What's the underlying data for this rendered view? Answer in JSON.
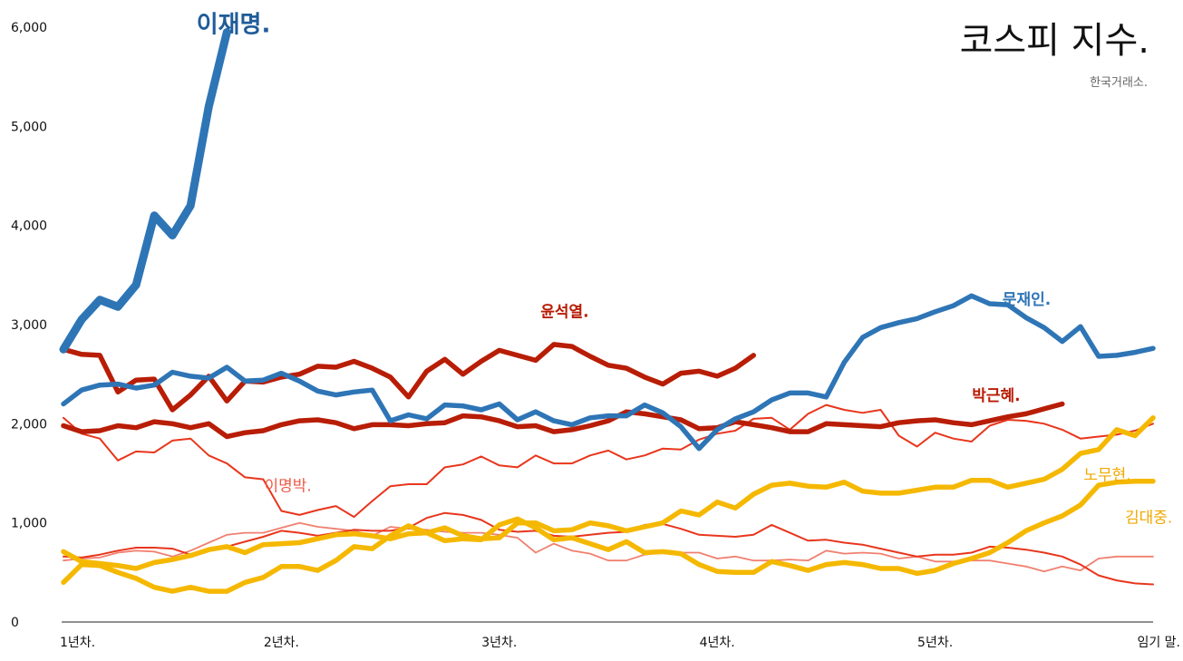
{
  "chart_data": {
    "type": "line",
    "title": "코스피 지수.",
    "subtitle": "한국거래소.",
    "xlabel": "",
    "ylabel": "",
    "x_ticks": [
      {
        "label": "1년차.",
        "value": 0
      },
      {
        "label": "2년차.",
        "value": 1
      },
      {
        "label": "3년차.",
        "value": 2
      },
      {
        "label": "4년차.",
        "value": 3
      },
      {
        "label": "5년차.",
        "value": 4
      },
      {
        "label": "임기 말.",
        "value": 5
      }
    ],
    "y_ticks": [
      0,
      1000,
      2000,
      3000,
      4000,
      5000,
      6000
    ],
    "y_tick_labels": [
      "0",
      "1,000",
      "2,000",
      "3,000",
      "4,000",
      "5,000",
      "6,000"
    ],
    "xlim": [
      0,
      5
    ],
    "ylim": [
      0,
      6000
    ],
    "grid": false,
    "series": [
      {
        "name": "이재명.",
        "color": "#2e75b6",
        "label_color": "#1f5c99",
        "stroke": 9,
        "label_size": 26,
        "label_weight": "bold",
        "label_at": [
          0.78,
          5950
        ],
        "x": [
          0,
          0.083,
          0.167,
          0.25,
          0.333,
          0.417,
          0.5,
          0.583,
          0.667,
          0.75
        ],
        "y": [
          2750,
          3050,
          3250,
          3180,
          3400,
          4100,
          3900,
          4200,
          5200,
          5950
        ]
      },
      {
        "name": "문재인.",
        "color": "#2e75b6",
        "label_color": "#2e75b6",
        "stroke": 5.5,
        "label_size": 17,
        "label_weight": "bold",
        "label_at": [
          4.42,
          3200
        ],
        "x": [
          0,
          0.083,
          0.167,
          0.25,
          0.333,
          0.417,
          0.5,
          0.583,
          0.667,
          0.75,
          0.833,
          0.917,
          1.0,
          1.083,
          1.167,
          1.25,
          1.333,
          1.417,
          1.5,
          1.583,
          1.667,
          1.75,
          1.833,
          1.917,
          2.0,
          2.083,
          2.167,
          2.25,
          2.333,
          2.417,
          2.5,
          2.583,
          2.667,
          2.75,
          2.833,
          2.917,
          3.0,
          3.083,
          3.167,
          3.25,
          3.333,
          3.417,
          3.5,
          3.583,
          3.667,
          3.75,
          3.833,
          3.917,
          4.0,
          4.083,
          4.167,
          4.25,
          4.333,
          4.417,
          4.5,
          4.583,
          4.667,
          4.75,
          4.833,
          4.917,
          5.0
        ],
        "y": [
          2200,
          2340,
          2390,
          2400,
          2360,
          2390,
          2520,
          2480,
          2460,
          2570,
          2430,
          2440,
          2510,
          2430,
          2330,
          2290,
          2320,
          2340,
          2030,
          2090,
          2050,
          2190,
          2180,
          2140,
          2200,
          2040,
          2120,
          2030,
          1990,
          2060,
          2080,
          2080,
          2190,
          2110,
          1970,
          1750,
          1940,
          2050,
          2120,
          2240,
          2310,
          2310,
          2270,
          2620,
          2870,
          2970,
          3020,
          3060,
          3130,
          3190,
          3290,
          3210,
          3200,
          3070,
          2970,
          2830,
          2980,
          2680,
          2690,
          2720,
          2760
        ]
      },
      {
        "name": "윤석열.",
        "color": "#b81d06",
        "label_color": "#b81d06",
        "stroke": 5.5,
        "label_size": 17,
        "label_weight": "bold",
        "label_at": [
          2.3,
          3080
        ],
        "x": [
          0,
          0.083,
          0.167,
          0.25,
          0.333,
          0.417,
          0.5,
          0.583,
          0.667,
          0.75,
          0.833,
          0.917,
          1.0,
          1.083,
          1.167,
          1.25,
          1.333,
          1.417,
          1.5,
          1.583,
          1.667,
          1.75,
          1.833,
          1.917,
          2.0,
          2.083,
          2.167,
          2.25,
          2.333,
          2.417,
          2.5,
          2.583,
          2.667,
          2.75,
          2.833,
          2.917,
          3.0,
          3.083,
          3.167
        ],
        "y": [
          2750,
          2700,
          2690,
          2320,
          2440,
          2450,
          2140,
          2290,
          2480,
          2230,
          2430,
          2420,
          2470,
          2500,
          2580,
          2570,
          2630,
          2560,
          2470,
          2270,
          2530,
          2650,
          2500,
          2630,
          2740,
          2690,
          2640,
          2800,
          2780,
          2680,
          2590,
          2560,
          2470,
          2400,
          2510,
          2530,
          2480,
          2560,
          2690
        ]
      },
      {
        "name": "박근혜.",
        "color": "#b81d06",
        "label_color": "#b81d06",
        "stroke": 5.5,
        "label_size": 17,
        "label_weight": "bold",
        "label_at": [
          4.28,
          2230
        ],
        "x": [
          0,
          0.083,
          0.167,
          0.25,
          0.333,
          0.417,
          0.5,
          0.583,
          0.667,
          0.75,
          0.833,
          0.917,
          1.0,
          1.083,
          1.167,
          1.25,
          1.333,
          1.417,
          1.5,
          1.583,
          1.667,
          1.75,
          1.833,
          1.917,
          2.0,
          2.083,
          2.167,
          2.25,
          2.333,
          2.417,
          2.5,
          2.583,
          2.667,
          2.75,
          2.833,
          2.917,
          3.0,
          3.083,
          3.167,
          3.25,
          3.333,
          3.417,
          3.5,
          3.583,
          3.667,
          3.75,
          3.833,
          3.917,
          4.0,
          4.083,
          4.167,
          4.25,
          4.333,
          4.417,
          4.5,
          4.583
        ],
        "y": [
          1980,
          1920,
          1930,
          1980,
          1960,
          2020,
          2000,
          1960,
          2000,
          1870,
          1910,
          1930,
          1990,
          2030,
          2040,
          2010,
          1950,
          1990,
          1990,
          1980,
          2000,
          2010,
          2080,
          2070,
          2030,
          1970,
          1980,
          1920,
          1940,
          1980,
          2030,
          2120,
          2100,
          2070,
          2040,
          1950,
          1960,
          2020,
          1990,
          1960,
          1920,
          1920,
          2000,
          1990,
          1980,
          1970,
          2010,
          2030,
          2040,
          2010,
          1990,
          2030,
          2070,
          2100,
          2150,
          2200
        ]
      },
      {
        "name": "노무현.",
        "color": "#f5b800",
        "label_color": "#f0a800",
        "stroke": 5.5,
        "label_size": 17,
        "label_weight": "normal",
        "label_at": [
          4.79,
          1430
        ],
        "x": [
          0,
          0.083,
          0.167,
          0.25,
          0.333,
          0.417,
          0.5,
          0.583,
          0.667,
          0.75,
          0.833,
          0.917,
          1.0,
          1.083,
          1.167,
          1.25,
          1.333,
          1.417,
          1.5,
          1.583,
          1.667,
          1.75,
          1.833,
          1.917,
          2.0,
          2.083,
          2.167,
          2.25,
          2.333,
          2.417,
          2.5,
          2.583,
          2.667,
          2.75,
          2.833,
          2.917,
          3.0,
          3.083,
          3.167,
          3.25,
          3.333,
          3.417,
          3.5,
          3.583,
          3.667,
          3.75,
          3.833,
          3.917,
          4.0,
          4.083,
          4.167,
          4.25,
          4.333,
          4.417,
          4.5,
          4.583,
          4.667,
          4.75,
          4.833,
          4.917,
          5.0
        ],
        "y": [
          400,
          580,
          570,
          500,
          440,
          350,
          310,
          350,
          310,
          310,
          400,
          450,
          560,
          560,
          520,
          620,
          760,
          740,
          870,
          970,
          900,
          820,
          840,
          830,
          980,
          1040,
          950,
          830,
          850,
          790,
          730,
          810,
          700,
          710,
          690,
          580,
          510,
          500,
          500,
          610,
          570,
          520,
          580,
          600,
          580,
          540,
          540,
          490,
          520,
          590,
          640,
          700,
          800,
          920,
          1000,
          1070,
          1180,
          1380,
          1410,
          1420,
          1420
        ]
      },
      {
        "name": "노무현-late",
        "color": "#f5b800",
        "label_color": "#f0a800",
        "stroke": 5.5,
        "label_size": 17,
        "label_weight": "normal",
        "x": [],
        "y": []
      },
      {
        "name": "김대중.",
        "color": "#f5b800",
        "label_color": "#f0a800",
        "stroke": 5.5,
        "label_size": 17,
        "label_weight": "normal",
        "label_at": [
          4.98,
          1000
        ],
        "x": [
          0,
          0.083,
          0.167,
          0.25,
          0.333,
          0.417,
          0.5,
          0.583,
          0.667,
          0.75,
          0.833,
          0.917,
          1.0,
          1.083,
          1.167,
          1.25,
          1.333,
          1.417,
          1.5,
          1.583,
          1.667,
          1.75,
          1.833,
          1.917,
          2.0,
          2.083,
          2.167,
          2.25,
          2.333,
          2.417,
          2.5,
          2.583,
          2.667,
          2.75,
          2.833,
          2.917,
          3.0,
          3.083,
          3.167,
          3.25,
          3.333,
          3.417,
          3.5,
          3.583,
          3.667,
          3.75,
          3.833,
          3.917,
          4.0,
          4.083,
          4.167,
          4.25,
          4.333,
          4.417,
          4.5,
          4.583,
          4.667,
          4.75,
          4.833,
          4.917,
          5.0
        ],
        "y": [
          710,
          610,
          590,
          570,
          540,
          600,
          630,
          670,
          730,
          760,
          700,
          780,
          790,
          800,
          840,
          880,
          890,
          870,
          840,
          890,
          900,
          950,
          870,
          840,
          850,
          1000,
          1000,
          920,
          930,
          1000,
          970,
          920,
          960,
          1000,
          1120,
          1080,
          1210,
          1150,
          1290,
          1380,
          1400,
          1370,
          1360,
          1410,
          1320,
          1300,
          1300,
          1330,
          1360,
          1360,
          1430,
          1430,
          1360,
          1400,
          1440,
          1540,
          1700,
          1740,
          1940,
          1880,
          2060
        ]
      },
      {
        "name": "이명박.",
        "color": "#e8361c",
        "label_color": "#ee5a48",
        "stroke": 2,
        "label_size": 17,
        "label_weight": "normal",
        "label_at": [
          1.03,
          1320
        ],
        "x": [
          0,
          0.083,
          0.167,
          0.25,
          0.333,
          0.417,
          0.5,
          0.583,
          0.667,
          0.75,
          0.833,
          0.917,
          1.0,
          1.083,
          1.167,
          1.25,
          1.333,
          1.417,
          1.5,
          1.583,
          1.667,
          1.75,
          1.833,
          1.917,
          2.0,
          2.083,
          2.167,
          2.25,
          2.333,
          2.417,
          2.5,
          2.583,
          2.667,
          2.75,
          2.833,
          2.917,
          3.0,
          3.083,
          3.167,
          3.25,
          3.333,
          3.417,
          3.5,
          3.583,
          3.667,
          3.75,
          3.833,
          3.917,
          4.0,
          4.083,
          4.167,
          4.25,
          4.333,
          4.417,
          4.5,
          4.583,
          4.667,
          4.75,
          4.833,
          4.917,
          5.0
        ],
        "y": [
          2060,
          1900,
          1850,
          1630,
          1720,
          1710,
          1830,
          1850,
          1680,
          1600,
          1460,
          1440,
          1120,
          1080,
          1130,
          1170,
          1060,
          1220,
          1370,
          1390,
          1390,
          1560,
          1590,
          1670,
          1580,
          1560,
          1680,
          1600,
          1600,
          1680,
          1730,
          1640,
          1680,
          1750,
          1740,
          1840,
          1900,
          1930,
          2050,
          2060,
          1940,
          2100,
          2190,
          2140,
          2110,
          2140,
          1880,
          1770,
          1910,
          1850,
          1820,
          1980,
          2040,
          2030,
          2000,
          1940,
          1850,
          1870,
          1890,
          1930,
          2000
        ]
      },
      {
        "name": "red-thin-lower",
        "color": "#e8361c",
        "label_color": "#e8361c",
        "stroke": 2,
        "x": [
          0,
          0.083,
          0.167,
          0.25,
          0.333,
          0.417,
          0.5,
          0.583,
          0.667,
          0.75,
          0.833,
          0.917,
          1.0,
          1.083,
          1.167,
          1.25,
          1.333,
          1.417,
          1.5,
          1.583,
          1.667,
          1.75,
          1.833,
          1.917,
          2.0,
          2.083,
          2.167,
          2.25,
          2.333,
          2.417,
          2.5,
          2.583,
          2.667,
          2.75,
          2.833,
          2.917,
          3.0,
          3.083,
          3.167,
          3.25,
          3.333,
          3.417,
          3.5,
          3.583,
          3.667,
          3.75,
          3.833,
          3.917,
          4.0,
          4.083,
          4.167,
          4.25,
          4.333,
          4.417,
          4.5,
          4.583,
          4.667,
          4.75,
          4.833,
          4.917,
          5.0
        ],
        "y": [
          660,
          650,
          680,
          720,
          750,
          750,
          740,
          680,
          720,
          760,
          810,
          860,
          920,
          900,
          870,
          900,
          930,
          920,
          920,
          950,
          1050,
          1100,
          1080,
          1030,
          930,
          910,
          920,
          870,
          860,
          880,
          900,
          910,
          980,
          990,
          940,
          880,
          870,
          860,
          880,
          980,
          900,
          820,
          830,
          800,
          780,
          740,
          700,
          660,
          680,
          680,
          700,
          760,
          750,
          730,
          700,
          660,
          580,
          470,
          420,
          390,
          380
        ]
      },
      {
        "name": "salmon-thin",
        "color": "#f08070",
        "label_color": "#f08070",
        "stroke": 1.8,
        "x": [
          0,
          0.083,
          0.167,
          0.25,
          0.333,
          0.417,
          0.5,
          0.583,
          0.667,
          0.75,
          0.833,
          0.917,
          1.0,
          1.083,
          1.167,
          1.25,
          1.333,
          1.417,
          1.5,
          1.583,
          1.667,
          1.75,
          1.833,
          1.917,
          2.0,
          2.083,
          2.167,
          2.25,
          2.333,
          2.417,
          2.5,
          2.583,
          2.667,
          2.75,
          2.833,
          2.917,
          3.0,
          3.083,
          3.167,
          3.25,
          3.333,
          3.417,
          3.5,
          3.583,
          3.667,
          3.75,
          3.833,
          3.917,
          4.0,
          4.083,
          4.167,
          4.25,
          4.333,
          4.417,
          4.5,
          4.583,
          4.667,
          4.75,
          4.833,
          4.917,
          5.0
        ],
        "y": [
          620,
          640,
          650,
          700,
          720,
          710,
          660,
          720,
          800,
          880,
          900,
          900,
          950,
          1000,
          960,
          940,
          920,
          870,
          960,
          940,
          930,
          910,
          900,
          900,
          880,
          850,
          700,
          790,
          720,
          690,
          620,
          620,
          680,
          700,
          700,
          700,
          640,
          660,
          620,
          620,
          630,
          620,
          720,
          690,
          700,
          690,
          640,
          660,
          610,
          610,
          620,
          620,
          590,
          560,
          510,
          560,
          520,
          640,
          660,
          660,
          660
        ]
      }
    ]
  }
}
